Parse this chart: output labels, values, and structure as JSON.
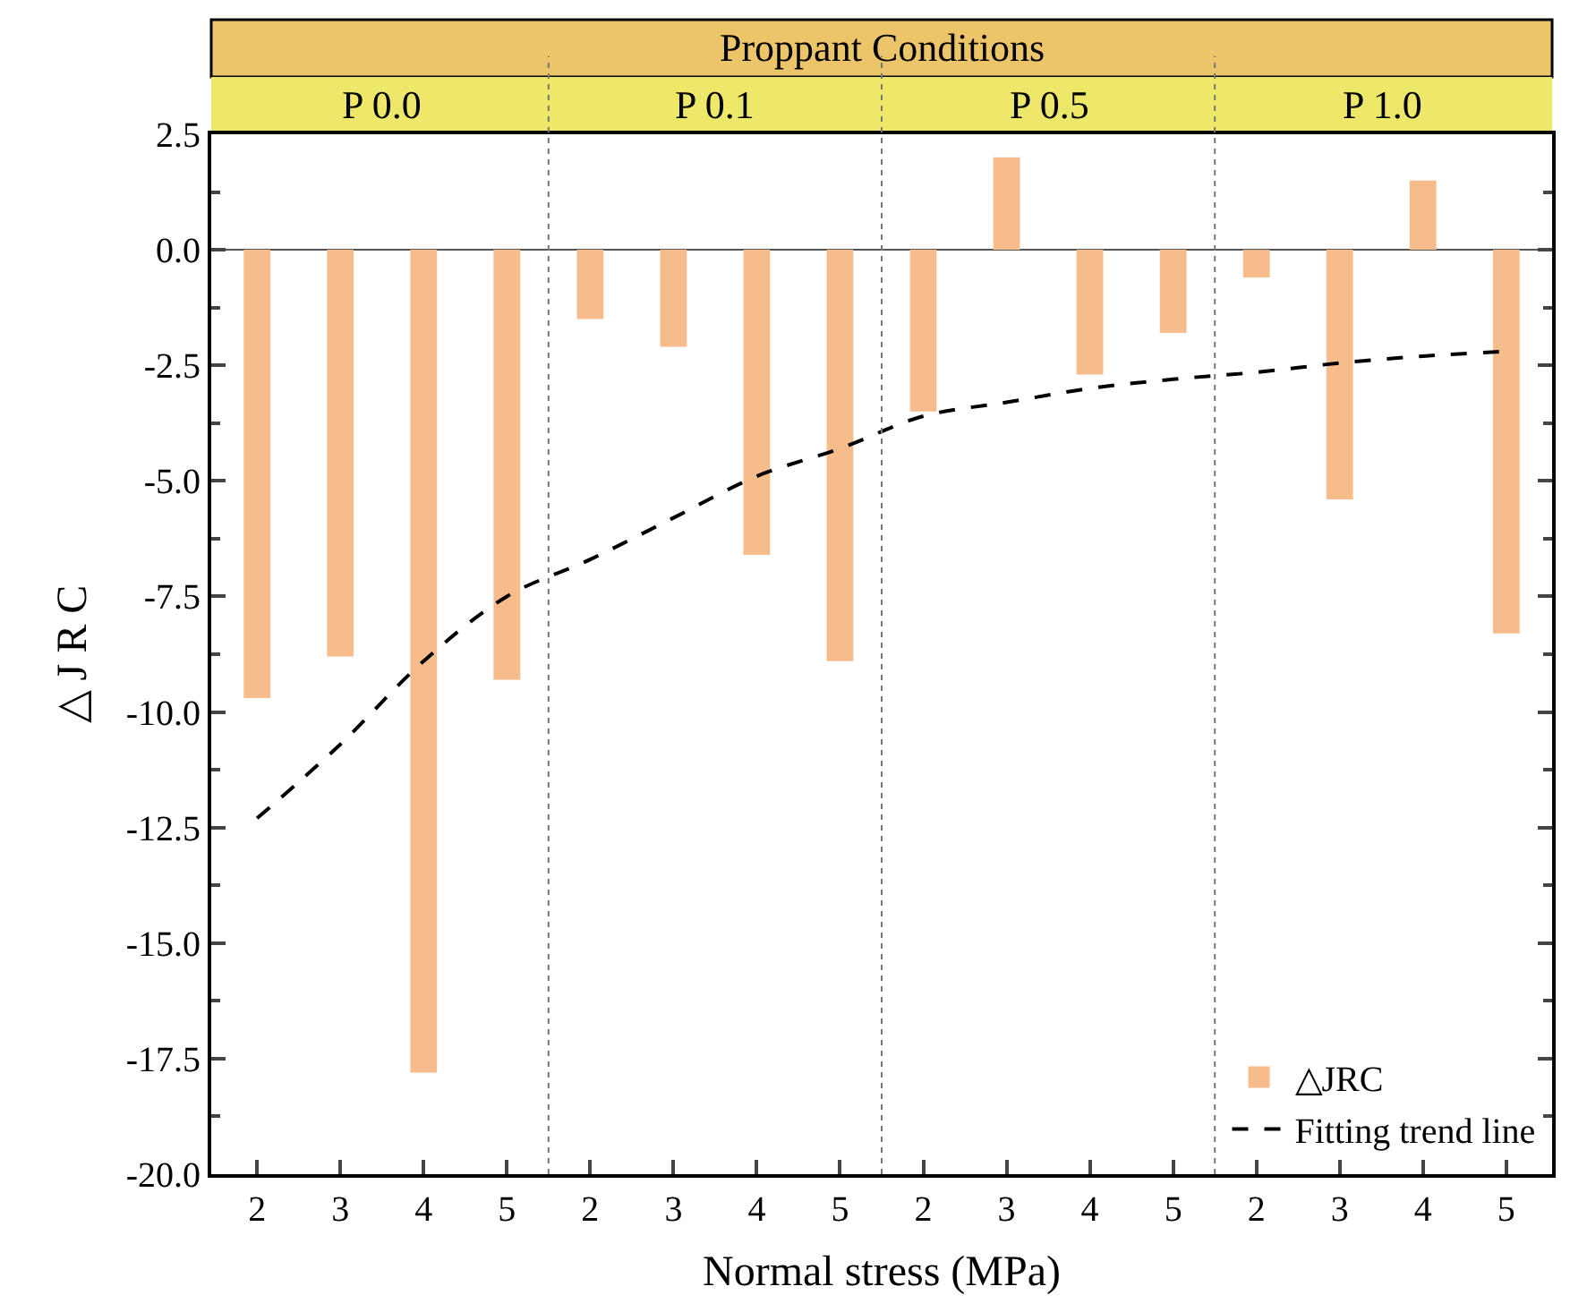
{
  "chart_data": {
    "type": "bar",
    "title": "Proppant Conditions",
    "categories": [
      "2",
      "3",
      "4",
      "5",
      "2",
      "3",
      "4",
      "5",
      "2",
      "3",
      "4",
      "5",
      "2",
      "3",
      "4",
      "5"
    ],
    "series": [
      {
        "name": "△JRC",
        "color": "#f7bc8c",
        "values": [
          -9.7,
          -8.8,
          -17.8,
          -9.3,
          -1.5,
          -2.1,
          -6.6,
          -8.9,
          -3.5,
          2.0,
          -2.7,
          -1.8,
          -0.6,
          -5.4,
          1.5,
          -8.3
        ]
      },
      {
        "name": "Fitting trend line",
        "type": "line",
        "color": "#000000",
        "line_style": "dashed",
        "marker": "none",
        "values": [
          -12.3,
          -10.7,
          -8.9,
          -7.5,
          -6.7,
          -5.8,
          -4.9,
          -4.3,
          -3.6,
          -3.3,
          -3.0,
          -2.8,
          -2.65,
          -2.45,
          -2.3,
          -2.2
        ]
      }
    ],
    "annotations": [
      "P 0.0",
      "P 0.1",
      "P 0.5",
      "P 1.0"
    ],
    "xlabel": "Normal stress (MPa)",
    "ylabel": "△ J R C",
    "ylim": [
      -20,
      2.5
    ],
    "yticks": [
      {
        "value": -20,
        "label": "-20.0"
      },
      {
        "value": -17.5,
        "label": "-17.5"
      },
      {
        "value": -15,
        "label": "-15.0"
      },
      {
        "value": -12.5,
        "label": "-12.5"
      },
      {
        "value": -10,
        "label": "-10.0"
      },
      {
        "value": -7.5,
        "label": "-7.5"
      },
      {
        "value": -5,
        "label": "-5.0"
      },
      {
        "value": -2.5,
        "label": "-2.5"
      },
      {
        "value": 0,
        "label": "0.0"
      },
      {
        "value": 2.5,
        "label": "2.5"
      }
    ],
    "legend": "bottom right",
    "grid": false
  }
}
